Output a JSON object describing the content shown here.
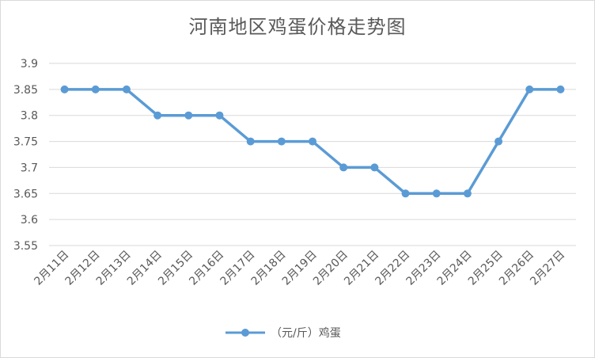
{
  "chart_data": {
    "type": "line",
    "title": "河南地区鸡蛋价格走势图",
    "categories": [
      "2月11日",
      "2月12日",
      "2月13日",
      "2月14日",
      "2月15日",
      "2月16日",
      "2月17日",
      "2月18日",
      "2月19日",
      "2月20日",
      "2月21日",
      "2月22日",
      "2月23日",
      "2月24日",
      "2月25日",
      "2月26日",
      "2月27日"
    ],
    "series": [
      {
        "name": "（元/斤）鸡蛋",
        "values": [
          3.85,
          3.85,
          3.85,
          3.8,
          3.8,
          3.8,
          3.75,
          3.75,
          3.75,
          3.7,
          3.7,
          3.65,
          3.65,
          3.65,
          3.75,
          3.85,
          3.85
        ],
        "color": "#5b9bd5"
      }
    ],
    "ylim": [
      3.55,
      3.9
    ],
    "yticks": [
      3.55,
      3.6,
      3.65,
      3.7,
      3.75,
      3.8,
      3.85,
      3.9
    ],
    "ytick_labels": [
      "3.55",
      "3.6",
      "3.65",
      "3.7",
      "3.75",
      "3.8",
      "3.85",
      "3.9"
    ],
    "xlabel": "",
    "ylabel": "",
    "grid": true,
    "legend": "bottom"
  }
}
